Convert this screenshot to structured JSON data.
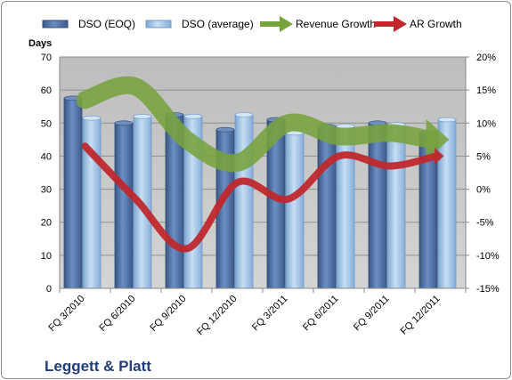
{
  "chart_data": {
    "type": "bar",
    "categories": [
      "FQ 3/2010",
      "FQ 6/2010",
      "FQ 9/2010",
      "FQ 12/2010",
      "FQ 3/2011",
      "FQ 6/2011",
      "FQ 9/2011",
      "FQ 12/2011"
    ],
    "series": [
      {
        "name": "DSO (EOQ)",
        "type": "bar",
        "axis": "left",
        "values": [
          57.5,
          50,
          52.5,
          48,
          51,
          49,
          50,
          47
        ]
      },
      {
        "name": "DSO (average)",
        "type": "bar",
        "axis": "left",
        "values": [
          51.5,
          52,
          52,
          52.5,
          47,
          49,
          49.5,
          51
        ]
      },
      {
        "name": "Revenue Growth",
        "type": "line",
        "axis": "right",
        "unit": "%",
        "values": [
          13.5,
          15.5,
          7.5,
          4,
          10,
          8,
          8.5,
          7.5
        ]
      },
      {
        "name": "AR Growth",
        "type": "line",
        "axis": "right",
        "unit": "%",
        "values": [
          6.5,
          -1.5,
          -9,
          1,
          -1.5,
          5,
          3.5,
          5
        ]
      }
    ],
    "y_left": {
      "label": "Days",
      "min": 0,
      "max": 70,
      "step": 10
    },
    "y_right": {
      "min": -15,
      "max": 20,
      "step": 5,
      "format": "percent"
    },
    "legend": {
      "position": "top"
    },
    "grid": true,
    "colors": {
      "dso_eoq": "#4a6fa5",
      "dso_avg": "#9dc3e6",
      "revenue_growth": "#77a33e",
      "ar_growth": "#c0282d",
      "plot_bg": "#c0c0c0"
    }
  },
  "company_label": "Leggett & Platt"
}
